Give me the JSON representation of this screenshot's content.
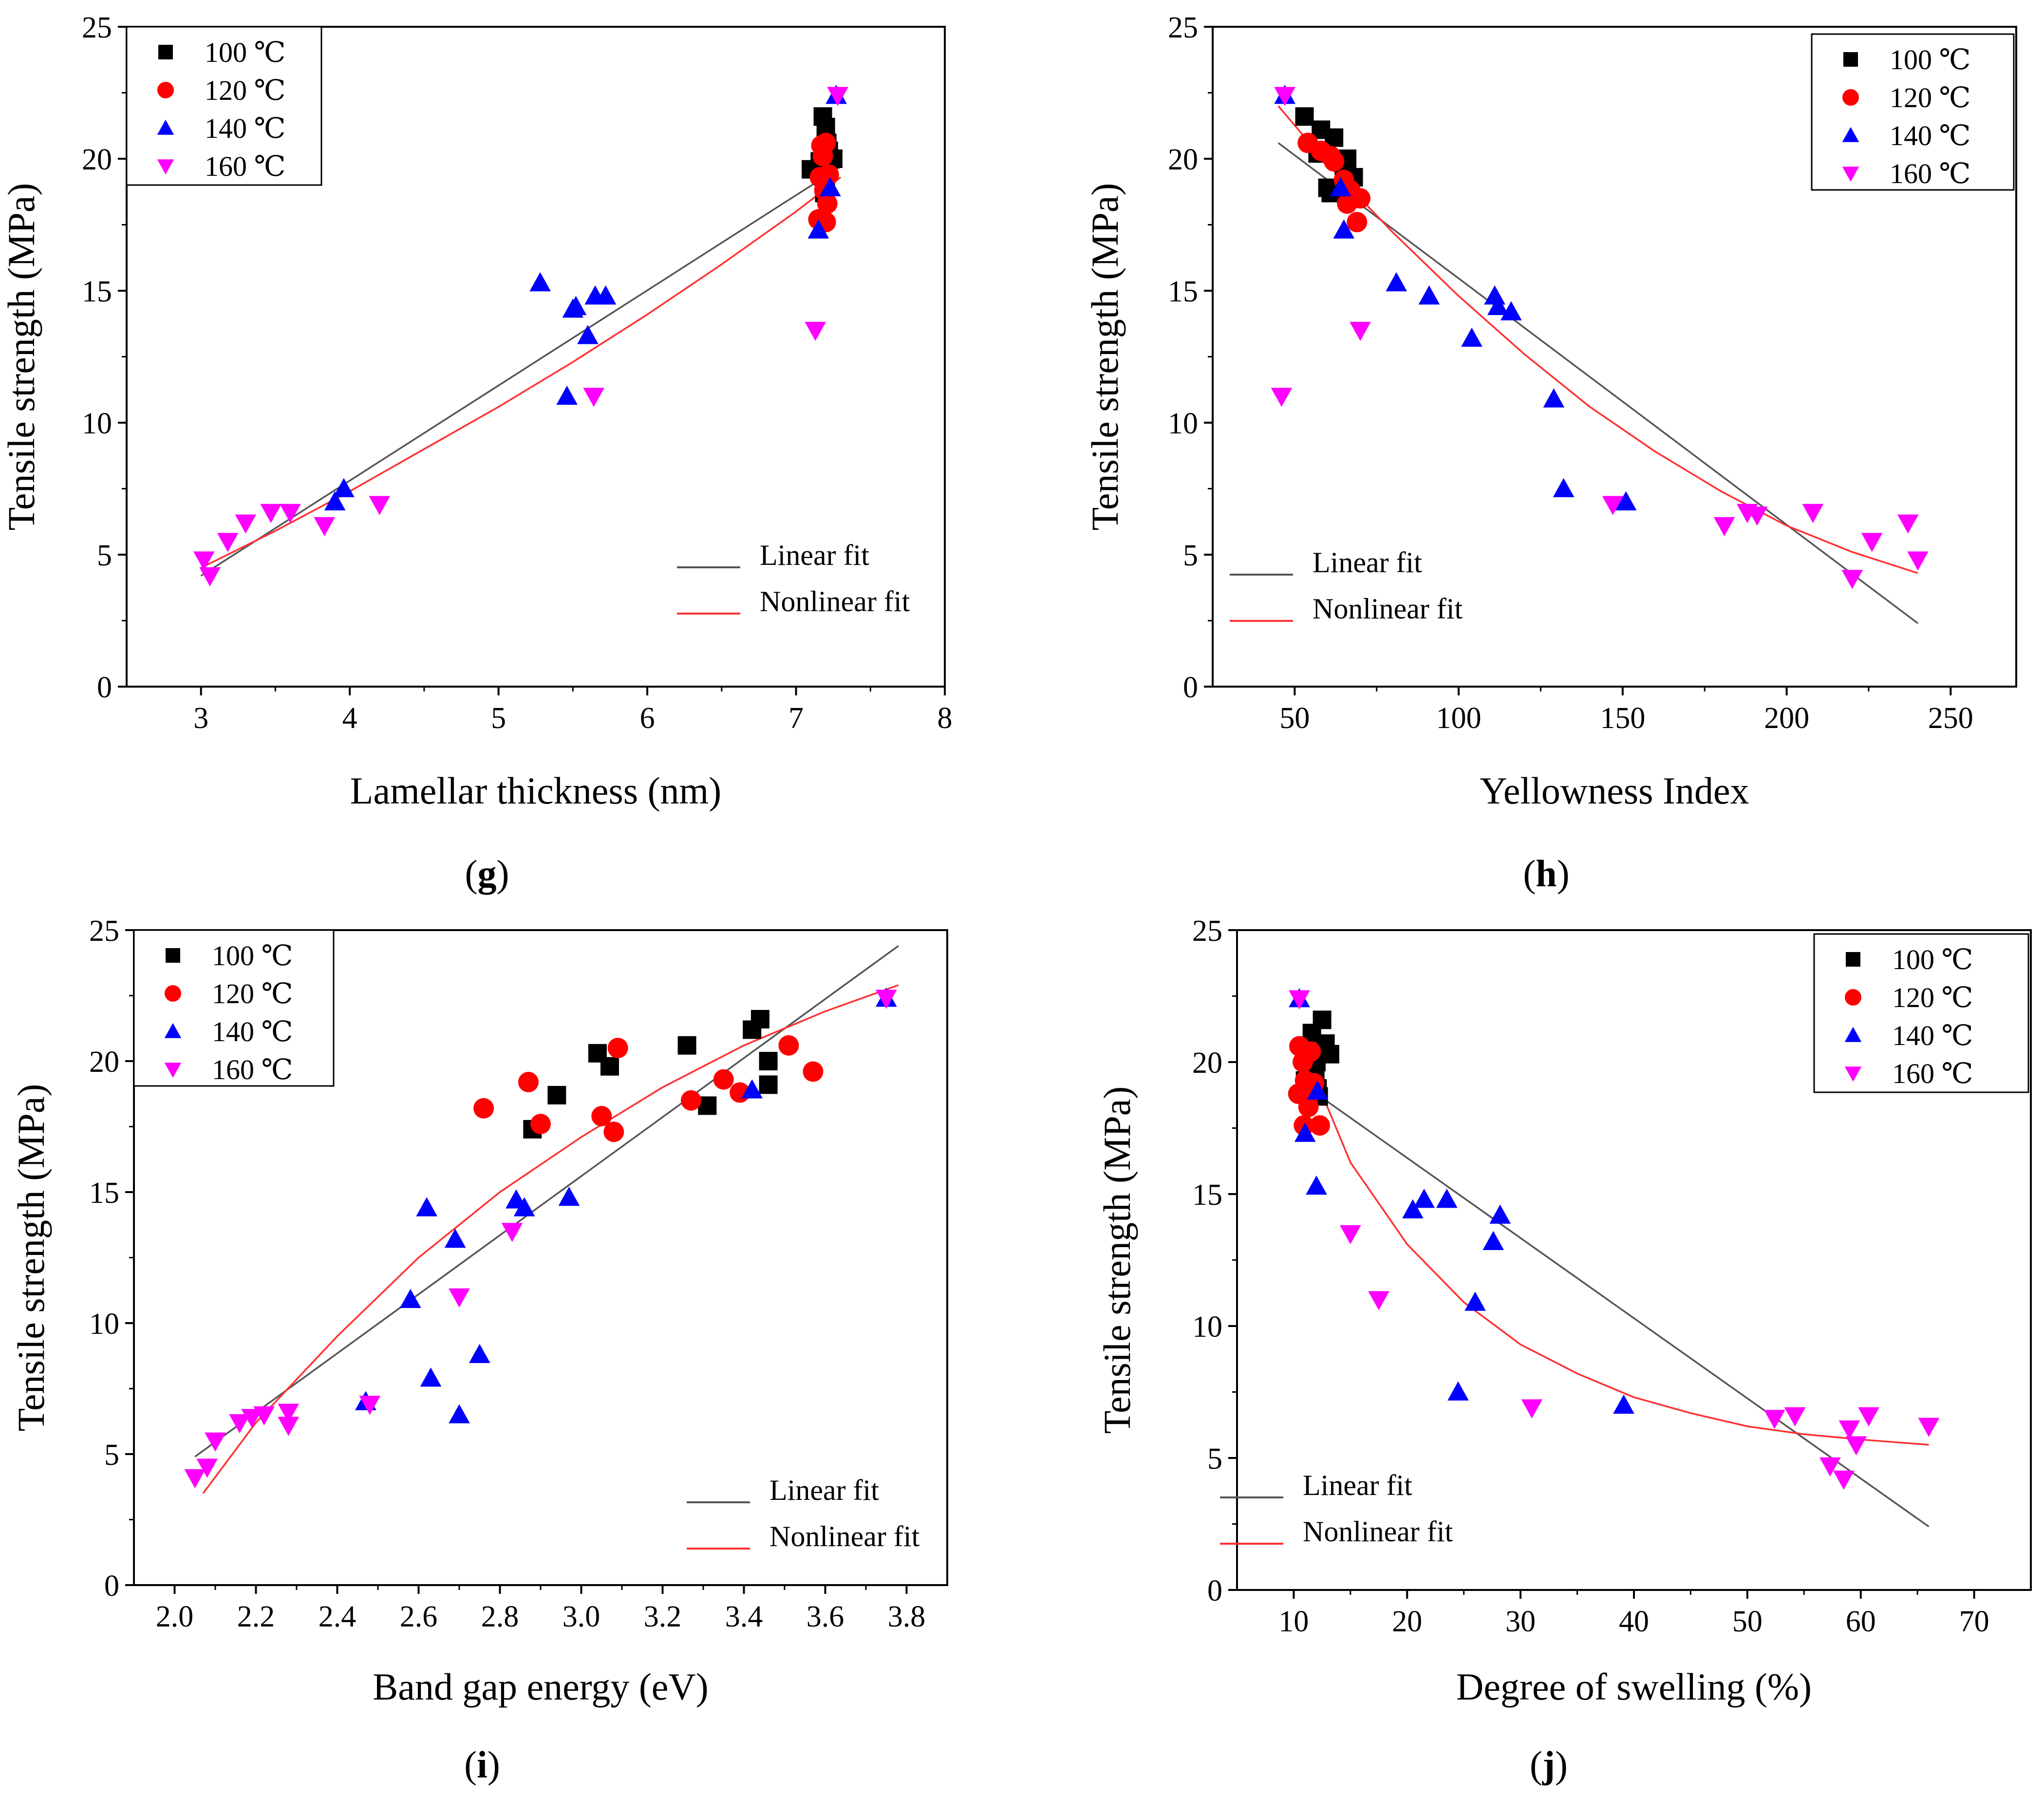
{
  "figure": {
    "legend_entries": [
      "100 ℃",
      "120 ℃",
      "140 ℃",
      "160 ℃"
    ],
    "fit_labels": [
      "Linear fit",
      "Nonlinear fit"
    ],
    "colors": {
      "100": "#000000",
      "120": "#ff0000",
      "140": "#0000ff",
      "160": "#ff00ff",
      "linear": "#555555",
      "nonlinear": "#ff3030"
    }
  },
  "chart_data": [
    {
      "type": "scatter",
      "panel_label": "g",
      "xlabel": "Lamellar thickness (nm)",
      "ylabel": "Tensile strength (MPa)",
      "xlim": [
        2.5,
        8
      ],
      "ylim": [
        0,
        25
      ],
      "xticks": [
        3,
        4,
        5,
        6,
        7,
        8
      ],
      "yticks": [
        0,
        5,
        10,
        15,
        20,
        25
      ],
      "legend_position": "top-left",
      "fit_legend_position": "bottom-right",
      "series": [
        {
          "name": "100 ℃",
          "x": [
            7.1,
            7.18,
            7.2,
            7.22,
            7.16,
            7.2,
            7.19,
            7.25,
            7.21
          ],
          "y": [
            19.6,
            21.6,
            21.2,
            20.3,
            19.9,
            19.2,
            18.7,
            20.0,
            20.6
          ]
        },
        {
          "name": "120 ℃",
          "x": [
            7.15,
            7.18,
            7.2,
            7.22,
            7.19,
            7.17,
            7.2,
            7.21,
            7.16
          ],
          "y": [
            17.7,
            20.1,
            20.6,
            19.4,
            18.8,
            20.5,
            17.6,
            18.3,
            19.3
          ]
        },
        {
          "name": "140 ℃",
          "x": [
            5.28,
            5.46,
            5.5,
            5.52,
            5.6,
            5.65,
            5.72,
            3.9,
            3.96,
            7.15,
            7.23,
            7.27
          ],
          "y": [
            15.3,
            11.0,
            14.3,
            14.4,
            13.3,
            14.8,
            14.8,
            7.0,
            7.5,
            17.3,
            18.9,
            22.4
          ]
        },
        {
          "name": "160 ℃",
          "x": [
            3.02,
            3.06,
            3.18,
            3.3,
            3.47,
            3.6,
            3.83,
            4.2,
            5.64,
            7.13,
            7.28
          ],
          "y": [
            4.8,
            4.2,
            5.5,
            6.2,
            6.6,
            6.6,
            6.1,
            6.9,
            11.0,
            13.5,
            22.4
          ]
        }
      ],
      "linear_fit": {
        "x": [
          3.0,
          7.3
        ],
        "y": [
          4.2,
          19.7
        ]
      },
      "nonlinear_fit": {
        "x": [
          3.0,
          3.5,
          4.0,
          4.5,
          5.0,
          5.5,
          6.0,
          6.5,
          7.0,
          7.3
        ],
        "y": [
          4.5,
          5.9,
          7.4,
          9.0,
          10.6,
          12.3,
          14.1,
          16.0,
          18.0,
          19.3
        ]
      }
    },
    {
      "type": "scatter",
      "panel_label": "h",
      "xlabel": "Yellowness Index",
      "ylabel": "Tensile strength (MPa)",
      "xlim": [
        25,
        270
      ],
      "ylim": [
        0,
        25
      ],
      "xticks": [
        50,
        100,
        150,
        200,
        250
      ],
      "yticks": [
        0,
        5,
        10,
        15,
        20,
        25
      ],
      "legend_position": "top-right",
      "fit_legend_position": "bottom-left",
      "series": [
        {
          "name": "100 ℃",
          "x": [
            53,
            57,
            58,
            62,
            60,
            66,
            65,
            68,
            61
          ],
          "y": [
            21.6,
            20.2,
            21.1,
            20.8,
            18.9,
            20.0,
            19.5,
            19.3,
            18.7
          ]
        },
        {
          "name": "120 ℃",
          "x": [
            54,
            58,
            61,
            65,
            67,
            69,
            70,
            66,
            62
          ],
          "y": [
            20.6,
            20.3,
            20.1,
            19.2,
            18.8,
            17.6,
            18.5,
            18.3,
            19.9
          ]
        },
        {
          "name": "140 ℃",
          "x": [
            47,
            64,
            65,
            81,
            91,
            104,
            111,
            112,
            116,
            129,
            132,
            151
          ],
          "y": [
            22.4,
            18.9,
            17.3,
            15.3,
            14.8,
            13.2,
            14.8,
            14.4,
            14.2,
            10.9,
            7.5,
            7.0
          ]
        },
        {
          "name": "160 ℃",
          "x": [
            47,
            46,
            70,
            147,
            181,
            188,
            191,
            208,
            220,
            226,
            237,
            240
          ],
          "y": [
            22.4,
            11.0,
            13.5,
            6.9,
            6.1,
            6.6,
            6.5,
            6.6,
            4.1,
            5.5,
            6.2,
            4.8
          ]
        }
      ],
      "linear_fit": {
        "x": [
          45,
          240
        ],
        "y": [
          20.6,
          2.4
        ]
      },
      "nonlinear_fit": {
        "x": [
          45,
          60,
          80,
          100,
          120,
          140,
          160,
          180,
          200,
          220,
          240
        ],
        "y": [
          22.0,
          19.8,
          17.2,
          14.8,
          12.6,
          10.6,
          8.9,
          7.4,
          6.1,
          5.1,
          4.3
        ]
      }
    },
    {
      "type": "scatter",
      "panel_label": "i",
      "xlabel": "Band gap energy (eV)",
      "ylabel": "Tensile strength (MPa)",
      "xlim": [
        1.9,
        3.9
      ],
      "ylim": [
        0,
        25
      ],
      "xticks": [
        "2.0",
        "2.2",
        "2.4",
        "2.6",
        "2.8",
        "3.0",
        "3.2",
        "3.4",
        "3.6",
        "3.8"
      ],
      "yticks": [
        0,
        5,
        10,
        15,
        20,
        25
      ],
      "legend_position": "top-left",
      "fit_legend_position": "bottom-right",
      "series": [
        {
          "name": "100 ℃",
          "x": [
            2.88,
            2.94,
            3.04,
            3.07,
            3.26,
            3.31,
            3.42,
            3.44,
            3.46,
            3.46
          ],
          "y": [
            17.4,
            18.7,
            20.3,
            19.8,
            20.6,
            18.3,
            21.2,
            21.6,
            20.0,
            19.1
          ]
        },
        {
          "name": "120 ℃",
          "x": [
            2.76,
            2.87,
            2.9,
            3.05,
            3.08,
            3.09,
            3.27,
            3.35,
            3.39,
            3.51,
            3.57
          ],
          "y": [
            18.2,
            19.2,
            17.6,
            17.9,
            17.3,
            20.5,
            18.5,
            19.3,
            18.8,
            20.6,
            19.6
          ]
        },
        {
          "name": "140 ℃",
          "x": [
            2.47,
            2.58,
            2.62,
            2.63,
            2.69,
            2.7,
            2.75,
            2.84,
            2.86,
            2.97,
            3.42,
            3.75
          ],
          "y": [
            7.0,
            10.9,
            14.4,
            7.9,
            13.2,
            6.5,
            8.8,
            14.7,
            14.4,
            14.8,
            18.9,
            22.4
          ]
        },
        {
          "name": "160 ℃",
          "x": [
            2.05,
            2.08,
            2.1,
            2.16,
            2.19,
            2.22,
            2.28,
            2.28,
            2.48,
            2.7,
            2.83,
            3.75
          ],
          "y": [
            4.1,
            4.5,
            5.5,
            6.2,
            6.4,
            6.5,
            6.6,
            6.1,
            6.9,
            11.0,
            13.5,
            22.4
          ]
        }
      ],
      "linear_fit": {
        "x": [
          2.05,
          3.78
        ],
        "y": [
          4.9,
          24.4
        ]
      },
      "nonlinear_fit": {
        "x": [
          2.07,
          2.2,
          2.4,
          2.6,
          2.8,
          3.0,
          3.2,
          3.4,
          3.6,
          3.78
        ],
        "y": [
          3.5,
          6.2,
          9.5,
          12.5,
          15.0,
          17.1,
          19.0,
          20.6,
          21.9,
          22.9
        ]
      }
    },
    {
      "type": "scatter",
      "panel_label": "j",
      "xlabel": "Degree of swelling (%)",
      "ylabel": "Tensile strength (MPa)",
      "xlim": [
        5,
        75
      ],
      "ylim": [
        0,
        25
      ],
      "xticks": [
        10,
        20,
        30,
        40,
        50,
        60,
        70
      ],
      "yticks": [
        0,
        5,
        10,
        15,
        20,
        25
      ],
      "legend_position": "top-right",
      "fit_legend_position": "bottom-left",
      "series": [
        {
          "name": "100 ℃",
          "x": [
            11.6,
            12.0,
            12.5,
            12.8,
            13.2,
            11.9,
            12.1,
            11.4,
            12.2,
            11.0
          ],
          "y": [
            21.1,
            20.0,
            21.6,
            20.7,
            20.3,
            19.5,
            19.0,
            19.8,
            18.7,
            19.3
          ]
        },
        {
          "name": "120 ℃",
          "x": [
            10.5,
            10.8,
            11.0,
            11.3,
            11.5,
            11.8,
            12.3,
            10.4,
            10.9,
            11.2
          ],
          "y": [
            20.6,
            20.0,
            19.3,
            18.3,
            20.4,
            19.2,
            17.6,
            18.8,
            17.6,
            18.6
          ]
        },
        {
          "name": "140 ℃",
          "x": [
            10.5,
            11.0,
            12.0,
            12.1,
            20.5,
            21.5,
            23.5,
            24.5,
            26.0,
            27.6,
            28.2,
            39.1
          ],
          "y": [
            22.4,
            17.3,
            15.3,
            18.9,
            14.4,
            14.8,
            14.8,
            7.5,
            10.9,
            13.2,
            14.2,
            7.0
          ]
        },
        {
          "name": "160 ℃",
          "x": [
            10.5,
            15.0,
            17.5,
            31.0,
            52.4,
            54.2,
            57.3,
            58.5,
            59.0,
            59.6,
            60.7,
            66.0
          ],
          "y": [
            22.4,
            13.5,
            11.0,
            6.9,
            6.5,
            6.6,
            4.7,
            4.2,
            6.1,
            5.5,
            6.6,
            6.2
          ]
        }
      ],
      "linear_fit": {
        "x": [
          12,
          66
        ],
        "y": [
          18.8,
          2.4
        ]
      },
      "nonlinear_fit": {
        "x": [
          12,
          15,
          20,
          25,
          30,
          35,
          40,
          45,
          50,
          55,
          60,
          66
        ],
        "y": [
          19.3,
          16.2,
          13.1,
          10.9,
          9.3,
          8.2,
          7.3,
          6.7,
          6.2,
          5.9,
          5.7,
          5.5
        ]
      }
    }
  ]
}
